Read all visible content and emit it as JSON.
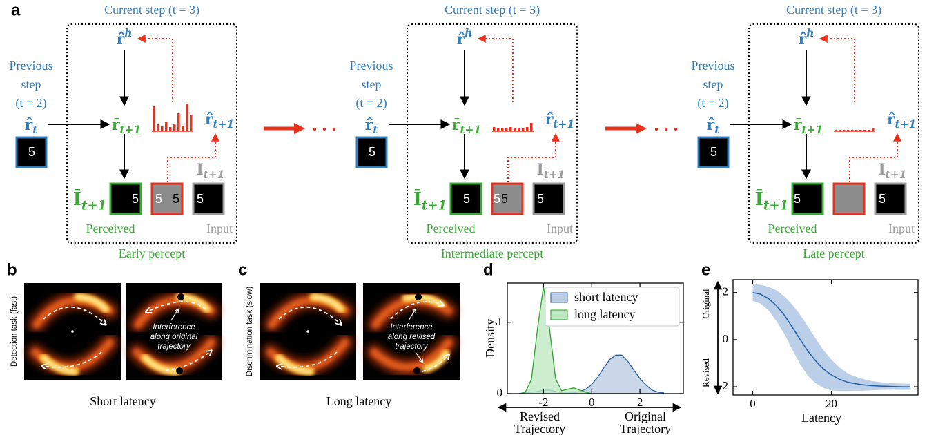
{
  "panel_a": {
    "label": "a",
    "diagrams": [
      {
        "current_step": "Current step (t = 3)",
        "previous_step": [
          "Previous",
          "step",
          "(t = 2)"
        ],
        "r_h": {
          "base": "r̂",
          "sup": "h"
        },
        "r_t": {
          "base": "r̂",
          "sub": "t"
        },
        "r_bar": {
          "base": "r̄",
          "sub": "t+1"
        },
        "r_next": {
          "base": "r̂",
          "sub": "t+1"
        },
        "i_bar": {
          "base": "Ī",
          "sub": "t+1"
        },
        "i_next": {
          "base": "I",
          "sub": "t+1"
        },
        "prev_digit": "5",
        "perceived_digits": [
          "5"
        ],
        "error_digits": [
          "5",
          "5"
        ],
        "input_digits": [
          "5"
        ],
        "perceived": "Perceived",
        "input": "Input",
        "caption": "Early percept"
      },
      {
        "current_step": "Current step (t = 3)",
        "previous_step": [
          "Previous",
          "step",
          "(t = 2)"
        ],
        "r_h": {
          "base": "r̂",
          "sup": "h"
        },
        "r_t": {
          "base": "r̂",
          "sub": "t"
        },
        "r_bar": {
          "base": "r̄",
          "sub": "t+1"
        },
        "r_next": {
          "base": "r̂",
          "sub": "t+1"
        },
        "i_bar": {
          "base": "Ī",
          "sub": "t+1"
        },
        "i_next": {
          "base": "I",
          "sub": "t+1"
        },
        "prev_digit": "5",
        "perceived_digits": [
          "5"
        ],
        "error_digits": [
          "5",
          "5"
        ],
        "input_digits": [
          "5"
        ],
        "perceived": "Perceived",
        "input": "Input",
        "caption": "Intermediate percept"
      },
      {
        "current_step": "Current step (t = 3)",
        "previous_step": [
          "Previous",
          "step",
          "(t = 2)"
        ],
        "r_h": {
          "base": "r̂",
          "sup": "h"
        },
        "r_t": {
          "base": "r̂",
          "sub": "t"
        },
        "r_bar": {
          "base": "r̄",
          "sub": "t+1"
        },
        "r_next": {
          "base": "r̂",
          "sub": "t+1"
        },
        "i_bar": {
          "base": "Ī",
          "sub": "t+1"
        },
        "i_next": {
          "base": "I",
          "sub": "t+1"
        },
        "prev_digit": "5",
        "perceived_digits": [
          "5"
        ],
        "input_digits": [
          "5"
        ],
        "perceived": "Perceived",
        "input": "Input",
        "caption": "Late percept"
      }
    ]
  },
  "panel_b": {
    "label": "b",
    "ylabel": "Detection task (fast)",
    "annotation": [
      "Interference",
      "along original",
      "trajectory"
    ],
    "caption": "Short latency"
  },
  "panel_c": {
    "label": "c",
    "ylabel": "Discrimination task (slow)",
    "annotation": [
      "Interference",
      "along revised",
      "trajectory"
    ],
    "caption": "Long latency"
  },
  "chart_data": [
    {
      "type": "area",
      "panel_label": "d",
      "ylabel": "Density",
      "x": [
        -3,
        -2.75,
        -2.5,
        -2.25,
        -2,
        -1.75,
        -1.5,
        -1.25,
        -1,
        -0.75,
        -0.5,
        -0.25,
        0,
        0.25,
        0.5,
        0.75,
        1,
        1.25,
        1.5,
        1.75,
        2,
        2.25,
        2.5,
        2.75,
        3
      ],
      "series": [
        {
          "name": "short latency",
          "color": "#2a5d9c",
          "fill": "#bccde4",
          "values": [
            0,
            0.01,
            0.02,
            0.03,
            0.05,
            0.05,
            0.03,
            0.01,
            0.01,
            0.01,
            0.03,
            0.06,
            0.13,
            0.23,
            0.36,
            0.48,
            0.54,
            0.54,
            0.45,
            0.33,
            0.21,
            0.12,
            0.05,
            0.02,
            0.01
          ]
        },
        {
          "name": "long latency",
          "color": "#2ca02c",
          "fill": "#bfe8c2",
          "values": [
            0,
            0.02,
            0.2,
            0.91,
            1.5,
            0.91,
            0.21,
            0.04,
            0.06,
            0.08,
            0.05,
            0.02,
            0,
            0,
            0,
            0,
            0,
            0,
            0,
            0,
            0,
            0,
            0,
            0,
            0
          ]
        }
      ],
      "xlim": [
        -3.5,
        3.8
      ],
      "xticks": [
        -2,
        0,
        2
      ],
      "ylim": [
        0,
        1.55
      ],
      "yticks": [
        0,
        1
      ],
      "legend": "upper right",
      "arrow_labels": {
        "left": [
          "Revised",
          "Trajectory"
        ],
        "right": [
          "Original",
          "Trajectory"
        ]
      }
    },
    {
      "type": "line",
      "panel_label": "e",
      "xlabel": "Latency",
      "x": [
        0,
        2,
        4,
        6,
        8,
        10,
        12,
        14,
        16,
        18,
        20,
        22,
        24,
        26,
        28,
        30,
        32,
        34,
        36,
        38,
        40
      ],
      "values": [
        2.0,
        1.93,
        1.75,
        1.45,
        1.05,
        0.55,
        0.02,
        -0.48,
        -0.9,
        -1.25,
        -1.5,
        -1.68,
        -1.8,
        -1.87,
        -1.92,
        -1.95,
        -1.97,
        -1.98,
        -1.99,
        -2.0,
        -2.0
      ],
      "upper": [
        2.35,
        2.33,
        2.25,
        2.1,
        1.85,
        1.5,
        1.07,
        0.57,
        0.05,
        -0.45,
        -0.85,
        -1.18,
        -1.42,
        -1.57,
        -1.67,
        -1.75,
        -1.8,
        -1.83,
        -1.85,
        -1.87,
        -1.87
      ],
      "lower": [
        1.65,
        1.53,
        1.25,
        0.8,
        0.25,
        -0.4,
        -1.03,
        -1.53,
        -1.85,
        -2.05,
        -2.15,
        -2.18,
        -2.18,
        -2.17,
        -2.17,
        -2.15,
        -2.14,
        -2.13,
        -2.13,
        -2.13,
        -2.13
      ],
      "color": "#1f5fa8",
      "band_color": "#bccfe8",
      "xlim": [
        -5,
        42
      ],
      "xticks": [
        0,
        20
      ],
      "ylim": [
        -2.35,
        2.55
      ],
      "yticks": [
        -2,
        0,
        2
      ],
      "y_annotations": {
        "top": "Original",
        "bottom": "Revised"
      }
    }
  ]
}
